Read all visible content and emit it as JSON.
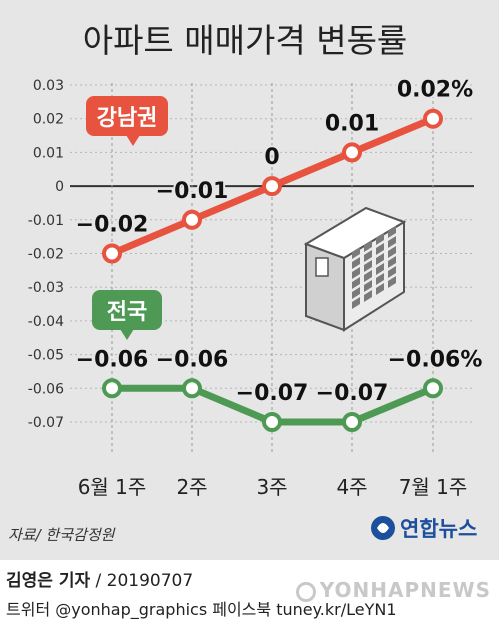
{
  "chart_data": {
    "type": "line",
    "title": "아파트 매매가격 변동률",
    "categories": [
      "6월 1주",
      "2주",
      "3주",
      "4주",
      "7월 1주"
    ],
    "series": [
      {
        "name": "강남권",
        "color": "#e8533f",
        "values": [
          -0.02,
          -0.01,
          0,
          0.01,
          0.02
        ],
        "labels": [
          "−0.02",
          "−0.01",
          "0",
          "0.01",
          "0.02%"
        ]
      },
      {
        "name": "전국",
        "color": "#4e9a55",
        "values": [
          -0.06,
          -0.06,
          -0.07,
          -0.07,
          -0.06
        ],
        "labels": [
          "−0.06",
          "−0.06",
          "−0.07",
          "−0.07",
          "−0.06%"
        ]
      }
    ],
    "yticks": [
      0.03,
      0.02,
      0.01,
      0,
      -0.01,
      -0.02,
      -0.03,
      -0.04,
      -0.05,
      -0.06,
      -0.07
    ],
    "ytick_labels": [
      "0.03",
      "0.02",
      "0.01",
      "0",
      "-0.01",
      "-0.02",
      "-0.03",
      "-0.04",
      "-0.05",
      "-0.06",
      "-0.07"
    ],
    "ylim": [
      -0.07,
      0.03
    ],
    "grid": true
  },
  "source": "자료/ 한국감정원",
  "brand": "연합뉴스",
  "footer": {
    "reporter": "김영은 기자",
    "date": " / 20190707",
    "social": "트위터 @yonhap_graphics  페이스북 tuney.kr/LeYN1"
  },
  "watermark": "YONHAPNEWS",
  "colors": {
    "background": "#e6e6e6",
    "brand_blue": "#1d4f9c"
  }
}
